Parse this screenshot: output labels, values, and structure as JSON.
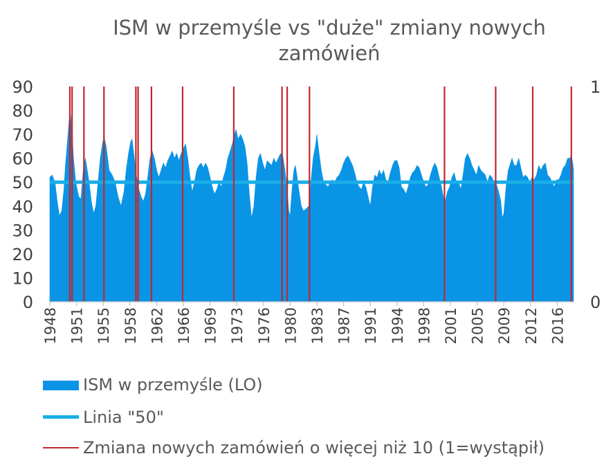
{
  "chart_data": {
    "type": "area",
    "title_line1": "ISM w przemyśle vs \"duże\" zmiany nowych",
    "title_line2": "zamówień",
    "x_range": [
      1948,
      2018.6
    ],
    "y_left": {
      "min": 0,
      "max": 90,
      "ticks": [
        0,
        10,
        20,
        30,
        40,
        50,
        60,
        70,
        80,
        90
      ]
    },
    "y_right": {
      "min": 0,
      "max": 1,
      "ticks": [
        0,
        1
      ]
    },
    "x_tick_labels": [
      "1948",
      "1951",
      "1955",
      "1958",
      "1962",
      "1966",
      "1969",
      "1973",
      "1976",
      "1980",
      "1983",
      "1987",
      "1991",
      "1994",
      "1998",
      "2001",
      "2005",
      "2009",
      "2012",
      "2016"
    ],
    "x_tick_years": [
      1948,
      1951.6,
      1955.2,
      1958.8,
      1962.4,
      1966,
      1969.6,
      1973.2,
      1976.8,
      1980.4,
      1984,
      1987.6,
      1991.2,
      1994.8,
      1998.4,
      2002,
      2005.6,
      2009.2,
      2012.8,
      2016.4
    ],
    "grid": false,
    "legend_position": "bottom",
    "series": [
      {
        "name": "ISM w przemyśle (LO)",
        "kind": "area",
        "color": "#0a94e6",
        "points": [
          [
            1948.0,
            52
          ],
          [
            1948.3,
            53
          ],
          [
            1948.7,
            50
          ],
          [
            1949.0,
            42
          ],
          [
            1949.3,
            36
          ],
          [
            1949.6,
            38
          ],
          [
            1949.9,
            47
          ],
          [
            1950.1,
            57
          ],
          [
            1950.4,
            68
          ],
          [
            1950.6,
            76
          ],
          [
            1950.8,
            78
          ],
          [
            1951.0,
            70
          ],
          [
            1951.2,
            60
          ],
          [
            1951.5,
            50
          ],
          [
            1951.9,
            44
          ],
          [
            1952.2,
            43
          ],
          [
            1952.5,
            55
          ],
          [
            1952.8,
            60
          ],
          [
            1953.0,
            56
          ],
          [
            1953.3,
            50
          ],
          [
            1953.6,
            42
          ],
          [
            1953.9,
            37
          ],
          [
            1954.2,
            40
          ],
          [
            1954.5,
            50
          ],
          [
            1954.8,
            60
          ],
          [
            1955.1,
            66
          ],
          [
            1955.3,
            69
          ],
          [
            1955.6,
            65
          ],
          [
            1956.0,
            55
          ],
          [
            1956.4,
            53
          ],
          [
            1956.8,
            50
          ],
          [
            1957.2,
            44
          ],
          [
            1957.6,
            40
          ],
          [
            1958.0,
            46
          ],
          [
            1958.3,
            55
          ],
          [
            1958.6,
            62
          ],
          [
            1958.9,
            67
          ],
          [
            1959.1,
            68
          ],
          [
            1959.4,
            60
          ],
          [
            1959.7,
            52
          ],
          [
            1960.0,
            47
          ],
          [
            1960.3,
            44
          ],
          [
            1960.6,
            42
          ],
          [
            1960.9,
            45
          ],
          [
            1961.2,
            52
          ],
          [
            1961.5,
            60
          ],
          [
            1961.8,
            63
          ],
          [
            1962.1,
            60
          ],
          [
            1962.4,
            55
          ],
          [
            1962.7,
            52
          ],
          [
            1963.0,
            55
          ],
          [
            1963.3,
            58
          ],
          [
            1963.6,
            56
          ],
          [
            1963.9,
            59
          ],
          [
            1964.2,
            61
          ],
          [
            1964.5,
            63
          ],
          [
            1964.8,
            60
          ],
          [
            1965.1,
            62
          ],
          [
            1965.4,
            59
          ],
          [
            1965.7,
            62
          ],
          [
            1966.0,
            64
          ],
          [
            1966.3,
            66
          ],
          [
            1966.6,
            60
          ],
          [
            1966.9,
            52
          ],
          [
            1967.2,
            46
          ],
          [
            1967.5,
            50
          ],
          [
            1967.8,
            55
          ],
          [
            1968.1,
            57
          ],
          [
            1968.4,
            58
          ],
          [
            1968.7,
            56
          ],
          [
            1969.0,
            58
          ],
          [
            1969.3,
            56
          ],
          [
            1969.6,
            52
          ],
          [
            1969.9,
            48
          ],
          [
            1970.2,
            45
          ],
          [
            1970.5,
            47
          ],
          [
            1970.8,
            50
          ],
          [
            1971.1,
            48
          ],
          [
            1971.4,
            52
          ],
          [
            1971.7,
            55
          ],
          [
            1972.0,
            60
          ],
          [
            1972.3,
            63
          ],
          [
            1972.6,
            66
          ],
          [
            1972.9,
            70
          ],
          [
            1973.1,
            72
          ],
          [
            1973.4,
            68
          ],
          [
            1973.7,
            70
          ],
          [
            1974.0,
            68
          ],
          [
            1974.3,
            65
          ],
          [
            1974.6,
            58
          ],
          [
            1974.9,
            45
          ],
          [
            1975.2,
            35
          ],
          [
            1975.5,
            40
          ],
          [
            1975.8,
            52
          ],
          [
            1976.1,
            60
          ],
          [
            1976.4,
            62
          ],
          [
            1976.7,
            58
          ],
          [
            1977.0,
            55
          ],
          [
            1977.3,
            59
          ],
          [
            1977.6,
            58
          ],
          [
            1977.9,
            57
          ],
          [
            1978.2,
            60
          ],
          [
            1978.5,
            58
          ],
          [
            1978.8,
            60
          ],
          [
            1979.1,
            62
          ],
          [
            1979.4,
            61
          ],
          [
            1979.7,
            55
          ],
          [
            1980.0,
            47
          ],
          [
            1980.2,
            38
          ],
          [
            1980.4,
            36
          ],
          [
            1980.6,
            45
          ],
          [
            1980.9,
            55
          ],
          [
            1981.1,
            57
          ],
          [
            1981.3,
            53
          ],
          [
            1981.6,
            46
          ],
          [
            1981.9,
            40
          ],
          [
            1982.2,
            38
          ],
          [
            1982.6,
            39
          ],
          [
            1982.9,
            40
          ],
          [
            1983.2,
            50
          ],
          [
            1983.5,
            60
          ],
          [
            1983.8,
            65
          ],
          [
            1984.0,
            70
          ],
          [
            1984.3,
            62
          ],
          [
            1984.6,
            55
          ],
          [
            1984.9,
            50
          ],
          [
            1985.2,
            49
          ],
          [
            1985.5,
            48
          ],
          [
            1985.8,
            50
          ],
          [
            1986.1,
            51
          ],
          [
            1986.4,
            50
          ],
          [
            1986.7,
            52
          ],
          [
            1987.0,
            53
          ],
          [
            1987.3,
            55
          ],
          [
            1987.6,
            58
          ],
          [
            1987.9,
            60
          ],
          [
            1988.2,
            61
          ],
          [
            1988.5,
            59
          ],
          [
            1988.8,
            57
          ],
          [
            1989.1,
            54
          ],
          [
            1989.4,
            50
          ],
          [
            1989.7,
            48
          ],
          [
            1990.0,
            47
          ],
          [
            1990.3,
            50
          ],
          [
            1990.6,
            48
          ],
          [
            1990.9,
            44
          ],
          [
            1991.2,
            40
          ],
          [
            1991.5,
            48
          ],
          [
            1991.8,
            53
          ],
          [
            1992.1,
            52
          ],
          [
            1992.4,
            55
          ],
          [
            1992.7,
            53
          ],
          [
            1993.0,
            55
          ],
          [
            1993.3,
            51
          ],
          [
            1993.6,
            50
          ],
          [
            1993.9,
            54
          ],
          [
            1994.2,
            57
          ],
          [
            1994.5,
            59
          ],
          [
            1994.8,
            59
          ],
          [
            1995.1,
            56
          ],
          [
            1995.4,
            48
          ],
          [
            1995.7,
            47
          ],
          [
            1996.0,
            45
          ],
          [
            1996.3,
            48
          ],
          [
            1996.6,
            52
          ],
          [
            1996.9,
            54
          ],
          [
            1997.2,
            55
          ],
          [
            1997.5,
            57
          ],
          [
            1997.8,
            56
          ],
          [
            1998.1,
            53
          ],
          [
            1998.4,
            50
          ],
          [
            1998.7,
            48
          ],
          [
            1999.0,
            49
          ],
          [
            1999.3,
            53
          ],
          [
            1999.6,
            56
          ],
          [
            1999.9,
            58
          ],
          [
            2000.2,
            56
          ],
          [
            2000.5,
            52
          ],
          [
            2000.8,
            48
          ],
          [
            2001.1,
            43
          ],
          [
            2001.3,
            42
          ],
          [
            2001.6,
            46
          ],
          [
            2001.9,
            48
          ],
          [
            2002.2,
            52
          ],
          [
            2002.5,
            54
          ],
          [
            2002.8,
            50
          ],
          [
            2003.1,
            50
          ],
          [
            2003.4,
            47
          ],
          [
            2003.7,
            53
          ],
          [
            2004.0,
            60
          ],
          [
            2004.3,
            62
          ],
          [
            2004.6,
            60
          ],
          [
            2004.9,
            57
          ],
          [
            2005.2,
            55
          ],
          [
            2005.5,
            53
          ],
          [
            2005.8,
            57
          ],
          [
            2006.1,
            55
          ],
          [
            2006.4,
            54
          ],
          [
            2006.7,
            53
          ],
          [
            2007.0,
            50
          ],
          [
            2007.3,
            53
          ],
          [
            2007.6,
            52
          ],
          [
            2007.9,
            50
          ],
          [
            2008.2,
            49
          ],
          [
            2008.5,
            46
          ],
          [
            2008.8,
            42
          ],
          [
            2009.0,
            35
          ],
          [
            2009.2,
            37
          ],
          [
            2009.5,
            48
          ],
          [
            2009.8,
            55
          ],
          [
            2010.0,
            57
          ],
          [
            2010.3,
            60
          ],
          [
            2010.6,
            57
          ],
          [
            2010.9,
            57
          ],
          [
            2011.2,
            60
          ],
          [
            2011.5,
            56
          ],
          [
            2011.8,
            52
          ],
          [
            2012.1,
            53
          ],
          [
            2012.4,
            52
          ],
          [
            2012.7,
            50
          ],
          [
            2013.0,
            52
          ],
          [
            2013.3,
            51
          ],
          [
            2013.6,
            53
          ],
          [
            2013.9,
            57
          ],
          [
            2014.2,
            55
          ],
          [
            2014.5,
            57
          ],
          [
            2014.8,
            58
          ],
          [
            2015.1,
            53
          ],
          [
            2015.4,
            52
          ],
          [
            2015.7,
            50
          ],
          [
            2016.0,
            48
          ],
          [
            2016.3,
            51
          ],
          [
            2016.6,
            51
          ],
          [
            2016.9,
            53
          ],
          [
            2017.2,
            56
          ],
          [
            2017.5,
            57
          ],
          [
            2017.8,
            60
          ],
          [
            2018.1,
            60
          ],
          [
            2018.3,
            61
          ],
          [
            2018.5,
            58
          ],
          [
            2018.6,
            55
          ]
        ]
      },
      {
        "name": "Linia \"50\"",
        "kind": "line",
        "color": "#1aaee8",
        "value": 50
      },
      {
        "name": "Zmiana nowych zamówień o więcej niż 10 (1=wystąpił)",
        "kind": "events",
        "axis": "right",
        "value": 1,
        "color": "#c0272d",
        "years": [
          1950.7,
          1951.0,
          1952.6,
          1955.3,
          1959.6,
          1959.9,
          1961.7,
          1965.9,
          1972.8,
          1979.3,
          1980.0,
          1983.0,
          2001.2,
          2008.1,
          2013.1,
          2018.3
        ]
      }
    ]
  }
}
